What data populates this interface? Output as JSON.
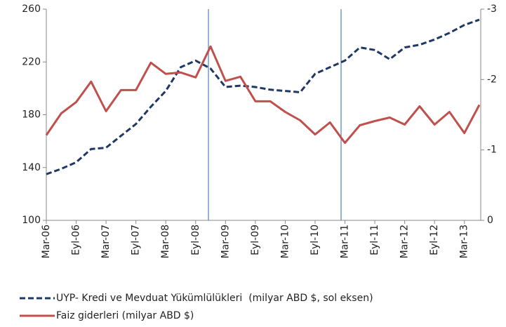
{
  "chart_data": {
    "type": "line",
    "categories": [
      "Mar-06",
      null,
      "Eyl-06",
      null,
      "Mar-07",
      null,
      "Eyl-07",
      null,
      "Mar-08",
      null,
      "Eyl-08",
      null,
      "Mar-09",
      null,
      "Eyl-09",
      null,
      "Mar-10",
      null,
      "Eyl-10",
      null,
      "Mar-11",
      null,
      "Eyl-11",
      null,
      "Mar-12",
      null,
      "Eyl-12",
      null,
      "Mar-13",
      null
    ],
    "series": [
      {
        "name": "UYP- Kredi ve Mevduat Yükümlülükleri  (milyar ABD $, sol eksen)",
        "color": "#1f3864",
        "dashed": true,
        "values": [
          135,
          139,
          144,
          154,
          155,
          164,
          173,
          186,
          198,
          216,
          221,
          215,
          201,
          202,
          201,
          199,
          198,
          197,
          211,
          216,
          221,
          231,
          229,
          222,
          231,
          233,
          237,
          242,
          248,
          252
        ]
      },
      {
        "name": "Faiz giderleri (milyar ABD $)",
        "color": "#c0504d",
        "dashed": false,
        "axis": "y2",
        "values": [
          -1.21,
          -1.52,
          -1.68,
          -1.97,
          -1.55,
          -1.85,
          -1.85,
          -2.24,
          -2.08,
          -2.1,
          -2.03,
          -2.47,
          -1.98,
          -2.04,
          -1.69,
          -1.69,
          -1.54,
          -1.42,
          -1.22,
          -1.39,
          -1.1,
          -1.35,
          -1.41,
          -1.46,
          -1.36,
          -1.62,
          -1.36,
          -1.54,
          -1.24,
          -1.64
        ]
      }
    ],
    "ylim": [
      100,
      260
    ],
    "yticks": [
      100,
      140,
      180,
      220,
      260
    ],
    "y2lim": [
      0,
      -3
    ],
    "y2ticks": [
      0,
      -1,
      -2,
      -3
    ],
    "grid": false
  }
}
